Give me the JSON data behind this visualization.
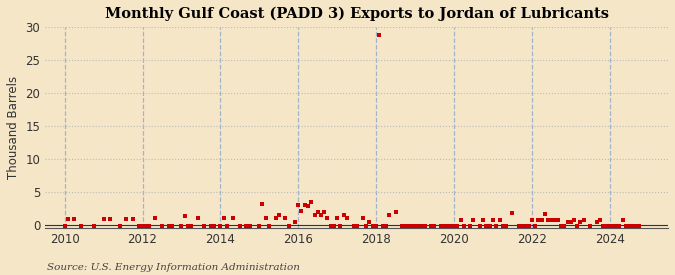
{
  "title": "Monthly Gulf Coast (PADD 3) Exports to Jordan of Lubricants",
  "ylabel": "Thousand Barrels",
  "source_text": "Source: U.S. Energy Information Administration",
  "background_color": "#f5e6c8",
  "plot_background_color": "#f5e6c8",
  "marker_color": "#cc0000",
  "marker_size": 3.5,
  "marker_shape": "s",
  "ylim": [
    -0.5,
    30
  ],
  "yticks": [
    0,
    5,
    10,
    15,
    20,
    25,
    30
  ],
  "xmin": 2009.5,
  "xmax": 2025.5,
  "xticks": [
    2010,
    2012,
    2014,
    2016,
    2018,
    2020,
    2022,
    2024
  ],
  "grid_color": "#bbbbbb",
  "grid_style": ":",
  "vgrid_color": "#a0b4cc",
  "vgrid_style": "--",
  "data": [
    [
      2010.0,
      -0.1
    ],
    [
      2010.08,
      0.9
    ],
    [
      2010.25,
      0.9
    ],
    [
      2010.42,
      -0.15
    ],
    [
      2010.75,
      -0.15
    ],
    [
      2011.0,
      0.9
    ],
    [
      2011.17,
      0.9
    ],
    [
      2011.42,
      -0.15
    ],
    [
      2011.58,
      0.85
    ],
    [
      2011.75,
      0.9
    ],
    [
      2011.92,
      -0.15
    ],
    [
      2012.0,
      -0.15
    ],
    [
      2012.08,
      -0.15
    ],
    [
      2012.17,
      -0.15
    ],
    [
      2012.33,
      1.0
    ],
    [
      2012.5,
      -0.15
    ],
    [
      2012.67,
      -0.15
    ],
    [
      2012.75,
      -0.15
    ],
    [
      2013.0,
      -0.15
    ],
    [
      2013.08,
      1.4
    ],
    [
      2013.17,
      -0.15
    ],
    [
      2013.25,
      -0.15
    ],
    [
      2013.42,
      1.0
    ],
    [
      2013.58,
      -0.15
    ],
    [
      2013.75,
      -0.15
    ],
    [
      2013.83,
      -0.15
    ],
    [
      2014.0,
      -0.15
    ],
    [
      2014.08,
      1.0
    ],
    [
      2014.17,
      -0.15
    ],
    [
      2014.33,
      1.0
    ],
    [
      2014.5,
      -0.15
    ],
    [
      2014.67,
      -0.15
    ],
    [
      2014.75,
      -0.15
    ],
    [
      2015.0,
      -0.15
    ],
    [
      2015.08,
      3.2
    ],
    [
      2015.17,
      1.0
    ],
    [
      2015.25,
      -0.15
    ],
    [
      2015.42,
      1.0
    ],
    [
      2015.5,
      1.5
    ],
    [
      2015.67,
      1.0
    ],
    [
      2015.75,
      -0.15
    ],
    [
      2015.92,
      0.5
    ],
    [
      2016.0,
      3.0
    ],
    [
      2016.08,
      2.1
    ],
    [
      2016.17,
      3.0
    ],
    [
      2016.25,
      2.8
    ],
    [
      2016.33,
      3.5
    ],
    [
      2016.42,
      1.5
    ],
    [
      2016.5,
      2.0
    ],
    [
      2016.58,
      1.5
    ],
    [
      2016.67,
      2.0
    ],
    [
      2016.75,
      1.0
    ],
    [
      2016.83,
      -0.15
    ],
    [
      2016.92,
      -0.15
    ],
    [
      2017.0,
      1.0
    ],
    [
      2017.08,
      -0.15
    ],
    [
      2017.17,
      1.5
    ],
    [
      2017.25,
      1.0
    ],
    [
      2017.42,
      -0.15
    ],
    [
      2017.5,
      -0.15
    ],
    [
      2017.67,
      1.0
    ],
    [
      2017.75,
      -0.15
    ],
    [
      2017.83,
      0.5
    ],
    [
      2017.92,
      -0.15
    ],
    [
      2018.0,
      -0.15
    ],
    [
      2018.08,
      28.8
    ],
    [
      2018.17,
      -0.15
    ],
    [
      2018.25,
      -0.15
    ],
    [
      2018.33,
      1.5
    ],
    [
      2018.5,
      2.0
    ],
    [
      2018.67,
      -0.15
    ],
    [
      2018.75,
      -0.15
    ],
    [
      2018.83,
      -0.15
    ],
    [
      2018.92,
      -0.15
    ],
    [
      2019.0,
      -0.15
    ],
    [
      2019.08,
      -0.15
    ],
    [
      2019.17,
      -0.15
    ],
    [
      2019.25,
      -0.15
    ],
    [
      2019.42,
      -0.15
    ],
    [
      2019.5,
      -0.15
    ],
    [
      2019.67,
      -0.15
    ],
    [
      2019.75,
      -0.15
    ],
    [
      2019.83,
      -0.15
    ],
    [
      2019.92,
      -0.15
    ],
    [
      2020.0,
      -0.15
    ],
    [
      2020.08,
      -0.15
    ],
    [
      2020.17,
      0.7
    ],
    [
      2020.25,
      -0.15
    ],
    [
      2020.42,
      -0.15
    ],
    [
      2020.5,
      0.8
    ],
    [
      2020.67,
      -0.15
    ],
    [
      2020.75,
      0.8
    ],
    [
      2020.83,
      -0.15
    ],
    [
      2020.92,
      -0.15
    ],
    [
      2021.0,
      0.8
    ],
    [
      2021.08,
      -0.15
    ],
    [
      2021.17,
      0.8
    ],
    [
      2021.25,
      -0.15
    ],
    [
      2021.33,
      -0.15
    ],
    [
      2021.5,
      1.8
    ],
    [
      2021.67,
      -0.15
    ],
    [
      2021.75,
      -0.15
    ],
    [
      2021.83,
      -0.15
    ],
    [
      2021.92,
      -0.15
    ],
    [
      2022.0,
      0.8
    ],
    [
      2022.08,
      -0.15
    ],
    [
      2022.17,
      0.8
    ],
    [
      2022.25,
      0.8
    ],
    [
      2022.33,
      1.6
    ],
    [
      2022.42,
      0.8
    ],
    [
      2022.5,
      0.8
    ],
    [
      2022.58,
      0.8
    ],
    [
      2022.67,
      0.8
    ],
    [
      2022.75,
      -0.15
    ],
    [
      2022.83,
      -0.15
    ],
    [
      2022.92,
      0.5
    ],
    [
      2023.0,
      0.5
    ],
    [
      2023.08,
      0.8
    ],
    [
      2023.17,
      -0.15
    ],
    [
      2023.25,
      0.5
    ],
    [
      2023.33,
      0.8
    ],
    [
      2023.5,
      -0.15
    ],
    [
      2023.67,
      0.5
    ],
    [
      2023.75,
      0.8
    ],
    [
      2023.83,
      -0.15
    ],
    [
      2023.92,
      -0.15
    ],
    [
      2024.0,
      -0.15
    ],
    [
      2024.08,
      -0.15
    ],
    [
      2024.17,
      -0.15
    ],
    [
      2024.25,
      -0.15
    ],
    [
      2024.33,
      0.8
    ],
    [
      2024.42,
      -0.15
    ],
    [
      2024.5,
      -0.15
    ],
    [
      2024.58,
      -0.15
    ],
    [
      2024.67,
      -0.15
    ],
    [
      2024.75,
      -0.15
    ]
  ]
}
